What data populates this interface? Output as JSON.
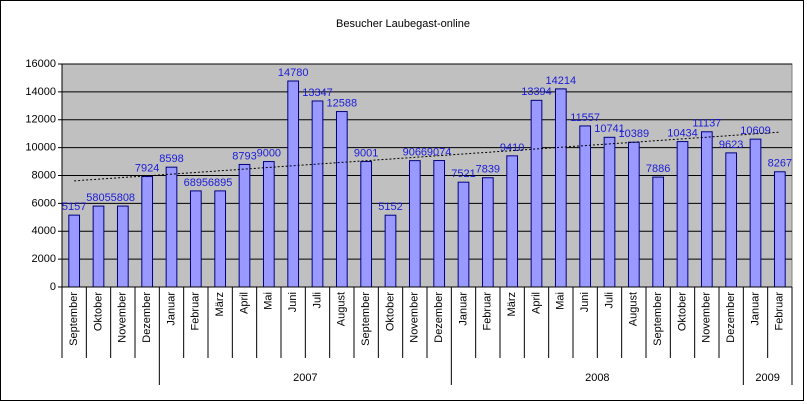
{
  "chart_data": {
    "type": "bar",
    "title": "Besucher Laubegast-online",
    "categories": [
      "September",
      "Oktober",
      "November",
      "Dezember",
      "Januar",
      "Februar",
      "März",
      "April",
      "Mai",
      "Juni",
      "Juli",
      "August",
      "September",
      "Oktober",
      "November",
      "Dezember",
      "Januar",
      "Februar",
      "März",
      "April",
      "Mai",
      "Juni",
      "Juli",
      "August",
      "September",
      "Oktober",
      "November",
      "Dezember",
      "Januar",
      "Februar"
    ],
    "years": [
      null,
      null,
      null,
      null,
      "2007",
      "2007",
      "2007",
      "2007",
      "2007",
      "2007",
      "2007",
      "2007",
      "2007",
      "2007",
      "2007",
      "2007",
      "2008",
      "2008",
      "2008",
      "2008",
      "2008",
      "2008",
      "2008",
      "2008",
      "2008",
      "2008",
      "2008",
      "2008",
      "2009",
      "2009"
    ],
    "values": [
      5157,
      5805,
      5808,
      7924,
      8598,
      6895,
      6895,
      8793,
      9000,
      14780,
      13347,
      12588,
      9001,
      5152,
      9066,
      9074,
      7521,
      7839,
      9410,
      13394,
      14214,
      11557,
      10741,
      10389,
      7886,
      10434,
      11137,
      9623,
      10609,
      8267
    ],
    "color": "#9999ff",
    "ylim": [
      0,
      16000
    ],
    "yticks": [
      0,
      2000,
      4000,
      6000,
      8000,
      10000,
      12000,
      14000,
      16000
    ],
    "grid": true,
    "trendline": true
  }
}
